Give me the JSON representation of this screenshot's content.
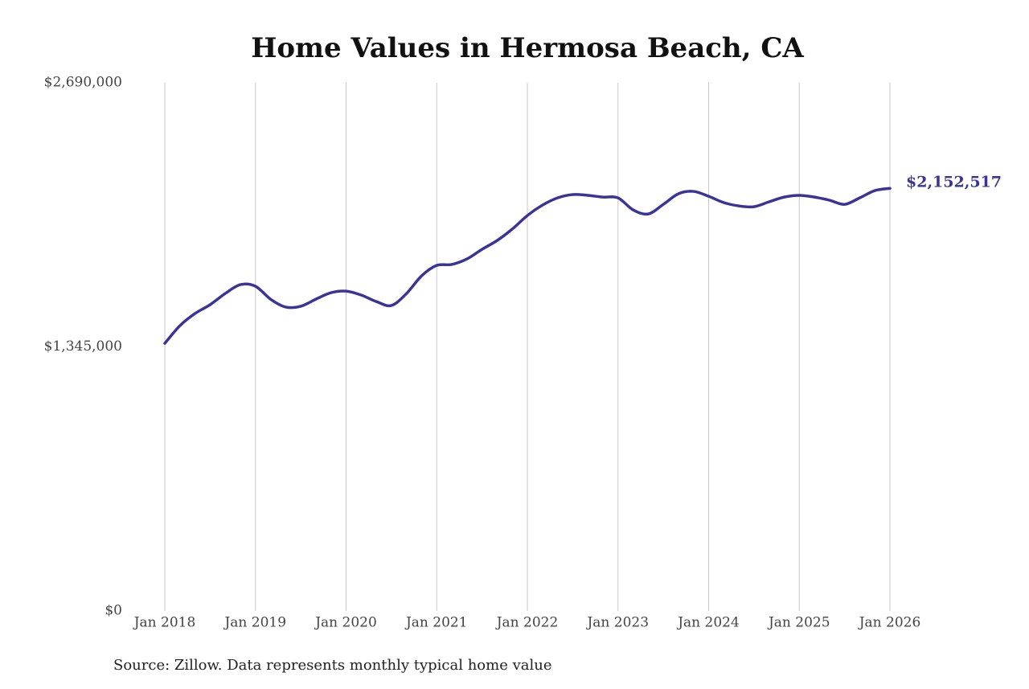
{
  "chart_data": {
    "type": "line",
    "title": "Home Values in Hermosa Beach, CA",
    "source": "Source: Zillow. Data represents monthly typical home value",
    "x": [
      "2018-01",
      "2018-03",
      "2018-05",
      "2018-07",
      "2018-09",
      "2018-11",
      "2019-01",
      "2019-03",
      "2019-05",
      "2019-07",
      "2019-09",
      "2019-11",
      "2020-01",
      "2020-03",
      "2020-05",
      "2020-07",
      "2020-09",
      "2020-11",
      "2021-01",
      "2021-03",
      "2021-05",
      "2021-07",
      "2021-09",
      "2021-11",
      "2022-01",
      "2022-03",
      "2022-05",
      "2022-07",
      "2022-09",
      "2022-11",
      "2023-01",
      "2023-03",
      "2023-05",
      "2023-07",
      "2023-09",
      "2023-11",
      "2024-01",
      "2024-03",
      "2024-05",
      "2024-07",
      "2024-09",
      "2024-11",
      "2025-01",
      "2025-03",
      "2025-05",
      "2025-07",
      "2025-09",
      "2025-11",
      "2026-01"
    ],
    "series": [
      {
        "color": "#3a3496",
        "values": [
          1363000,
          1453000,
          1515000,
          1560000,
          1617000,
          1662000,
          1654000,
          1588000,
          1548000,
          1552000,
          1588000,
          1621000,
          1629000,
          1609000,
          1576000,
          1556000,
          1617000,
          1707000,
          1760000,
          1765000,
          1793000,
          1842000,
          1887000,
          1945000,
          2014000,
          2067000,
          2104000,
          2121000,
          2117000,
          2108000,
          2104000,
          2043000,
          2022000,
          2071000,
          2125000,
          2137000,
          2112000,
          2080000,
          2063000,
          2059000,
          2084000,
          2108000,
          2117000,
          2108000,
          2092000,
          2071000,
          2104000,
          2141000,
          2152517
        ]
      }
    ],
    "end_label": "$2,152,517",
    "xlim": [
      "2018-01",
      "2026-01"
    ],
    "xticks": [
      {
        "value": "2018-01",
        "label": "Jan 2018"
      },
      {
        "value": "2019-01",
        "label": "Jan 2019"
      },
      {
        "value": "2020-01",
        "label": "Jan 2020"
      },
      {
        "value": "2021-01",
        "label": "Jan 2021"
      },
      {
        "value": "2022-01",
        "label": "Jan 2022"
      },
      {
        "value": "2023-01",
        "label": "Jan 2023"
      },
      {
        "value": "2024-01",
        "label": "Jan 2024"
      },
      {
        "value": "2025-01",
        "label": "Jan 2025"
      },
      {
        "value": "2026-01",
        "label": "Jan 2026"
      }
    ],
    "ylim": [
      0,
      2690000
    ],
    "yticks": [
      {
        "value": 0,
        "label": "$0"
      },
      {
        "value": 1345000,
        "label": "$1,345,000"
      },
      {
        "value": 2690000,
        "label": "$2,690,000"
      }
    ],
    "grid": "x"
  }
}
